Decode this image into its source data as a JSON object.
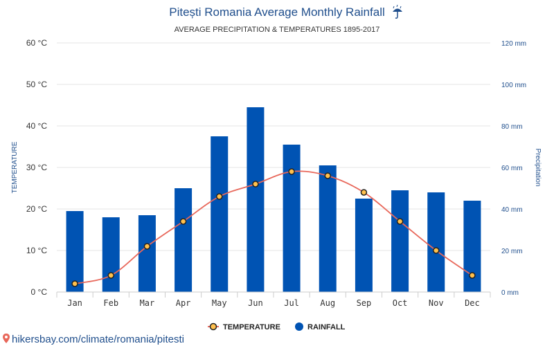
{
  "chart_data": {
    "type": "bar",
    "title": "Pitești Romania Average Monthly Rainfall",
    "title_icon": "umbrella-rain-icon",
    "subtitle": "AVERAGE PRECIPITATION & TEMPERATURES 1895-2017",
    "categories": [
      "Jan",
      "Feb",
      "Mar",
      "Apr",
      "May",
      "Jun",
      "Jul",
      "Aug",
      "Sep",
      "Oct",
      "Nov",
      "Dec"
    ],
    "series": [
      {
        "name": "RAINFALL",
        "type": "bar",
        "axis": "right",
        "unit": "mm",
        "color": "#0053b3",
        "values": [
          39,
          36,
          37,
          50,
          75,
          89,
          71,
          61,
          45,
          49,
          48,
          44
        ]
      },
      {
        "name": "TEMPERATURE",
        "type": "line",
        "axis": "left",
        "unit": "°C",
        "color": "#e8675a",
        "marker_fill": "#ffc04d",
        "values": [
          2,
          4,
          11,
          17,
          23,
          26,
          29,
          28,
          24,
          17,
          10,
          4
        ]
      }
    ],
    "ylabel_left": "TEMPERATURE",
    "ylabel_right": "Precipitation",
    "ylim_left": [
      0,
      60
    ],
    "ylim_right": [
      0,
      120
    ],
    "left_ticks": [
      "0 °C",
      "10 °C",
      "20 °C",
      "30 °C",
      "40 °C",
      "50 °C",
      "60 °C"
    ],
    "right_ticks": [
      "0 mm",
      "20 mm",
      "40 mm",
      "60 mm",
      "80 mm",
      "100 mm",
      "120 mm"
    ],
    "grid": true,
    "legend_position": "bottom-center"
  },
  "footer": {
    "link_text": "hikersbay.com/climate/romania/pitesti",
    "icon": "location-pin-icon"
  }
}
